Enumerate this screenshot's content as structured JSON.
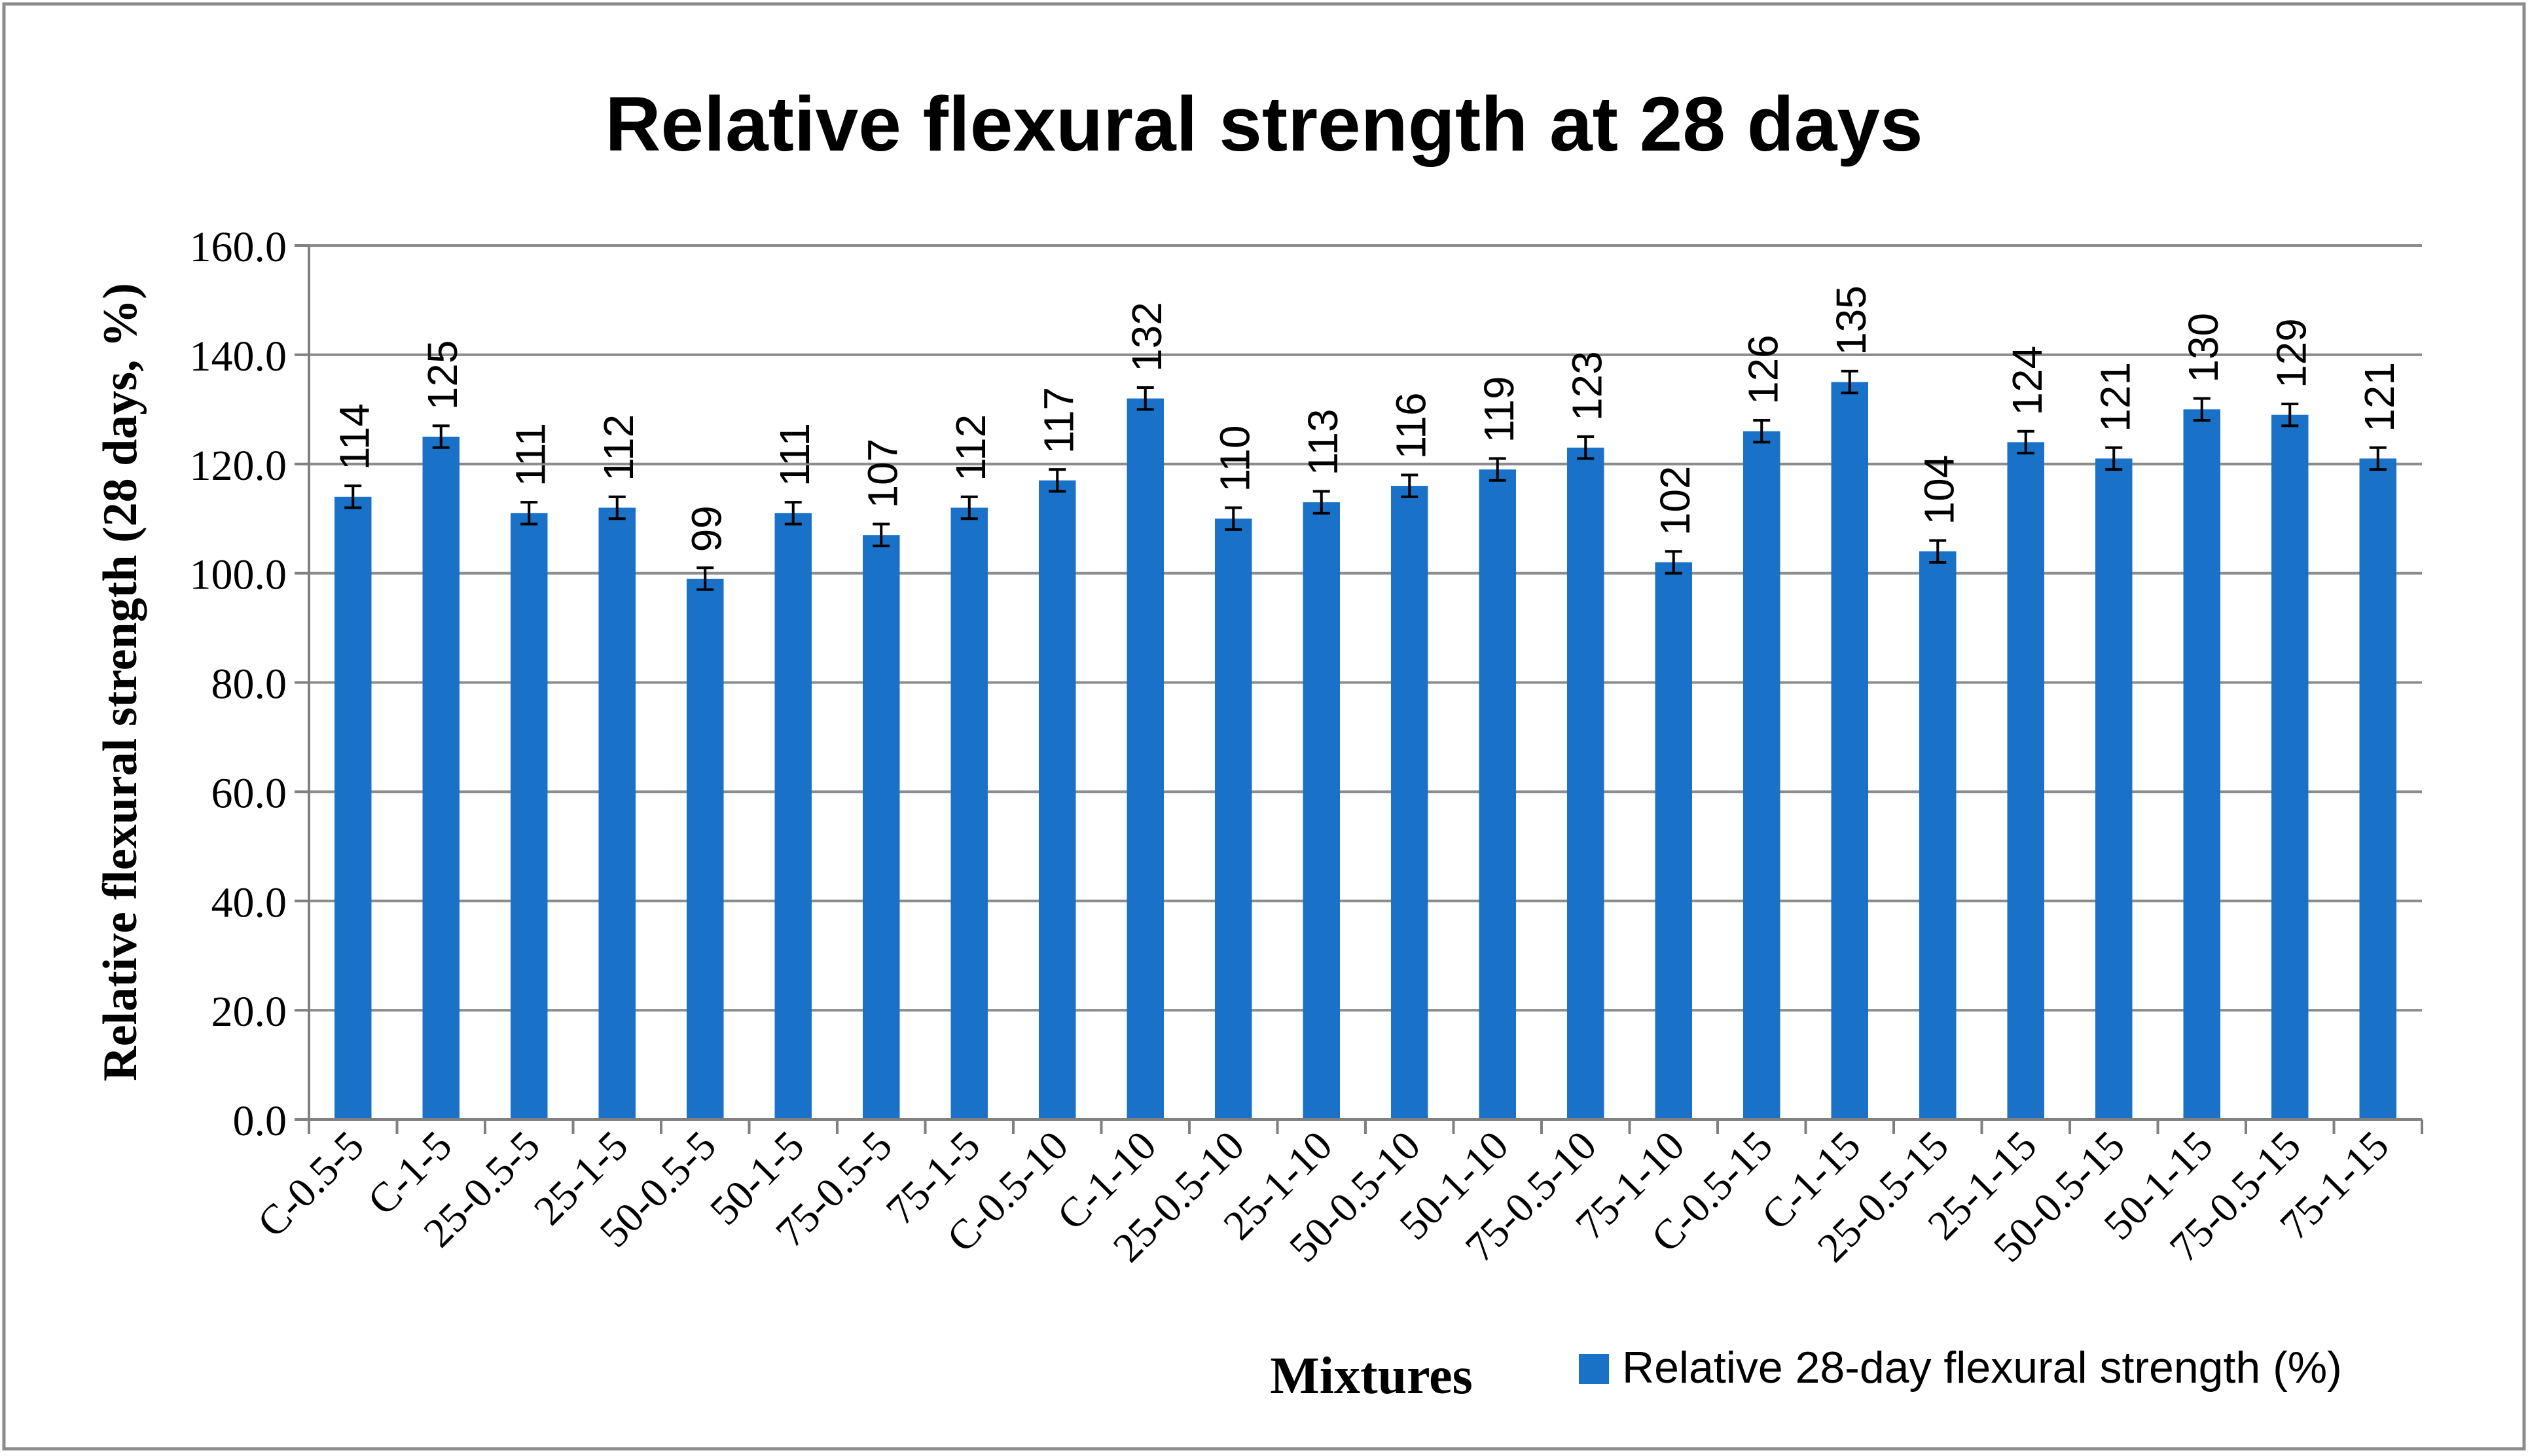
{
  "chart_data": {
    "type": "bar",
    "title": "Relative flexural strength at 28 days",
    "xlabel": "Mixtures",
    "ylabel": "Relative flexural strength (28 days, %)",
    "ylim": [
      0,
      160
    ],
    "yticks": [
      "0.0",
      "20.0",
      "40.0",
      "60.0",
      "80.0",
      "100.0",
      "120.0",
      "140.0",
      "160.0"
    ],
    "grid": true,
    "legend_position": "bottom-right",
    "categories": [
      "C-0.5-5",
      "C-1-5",
      "25-0.5-5",
      "25-1-5",
      "50-0.5-5",
      "50-1-5",
      "75-0.5-5",
      "75-1-5",
      "C-0.5-10",
      "C-1-10",
      "25-0.5-10",
      "25-1-10",
      "50-0.5-10",
      "50-1-10",
      "75-0.5-10",
      "75-1-10",
      "C-0.5-15",
      "C-1-15",
      "25-0.5-15",
      "25-1-15",
      "50-0.5-15",
      "50-1-15",
      "75-0.5-15",
      "75-1-15"
    ],
    "series": [
      {
        "name": "Relative 28-day flexural strength (%)",
        "color": "#1a72c8",
        "values": [
          114,
          125,
          111,
          112,
          99,
          111,
          107,
          112,
          117,
          132,
          110,
          113,
          116,
          119,
          123,
          102,
          126,
          135,
          104,
          124,
          121,
          130,
          129,
          121
        ],
        "data_labels": [
          "114",
          "125",
          "111",
          "112",
          "99",
          "111",
          "107",
          "112",
          "117",
          "132",
          "110",
          "113",
          "116",
          "119",
          "123",
          "102",
          "126",
          "135",
          "104",
          "124",
          "121",
          "130",
          "129",
          "121"
        ],
        "error": 2
      }
    ]
  }
}
